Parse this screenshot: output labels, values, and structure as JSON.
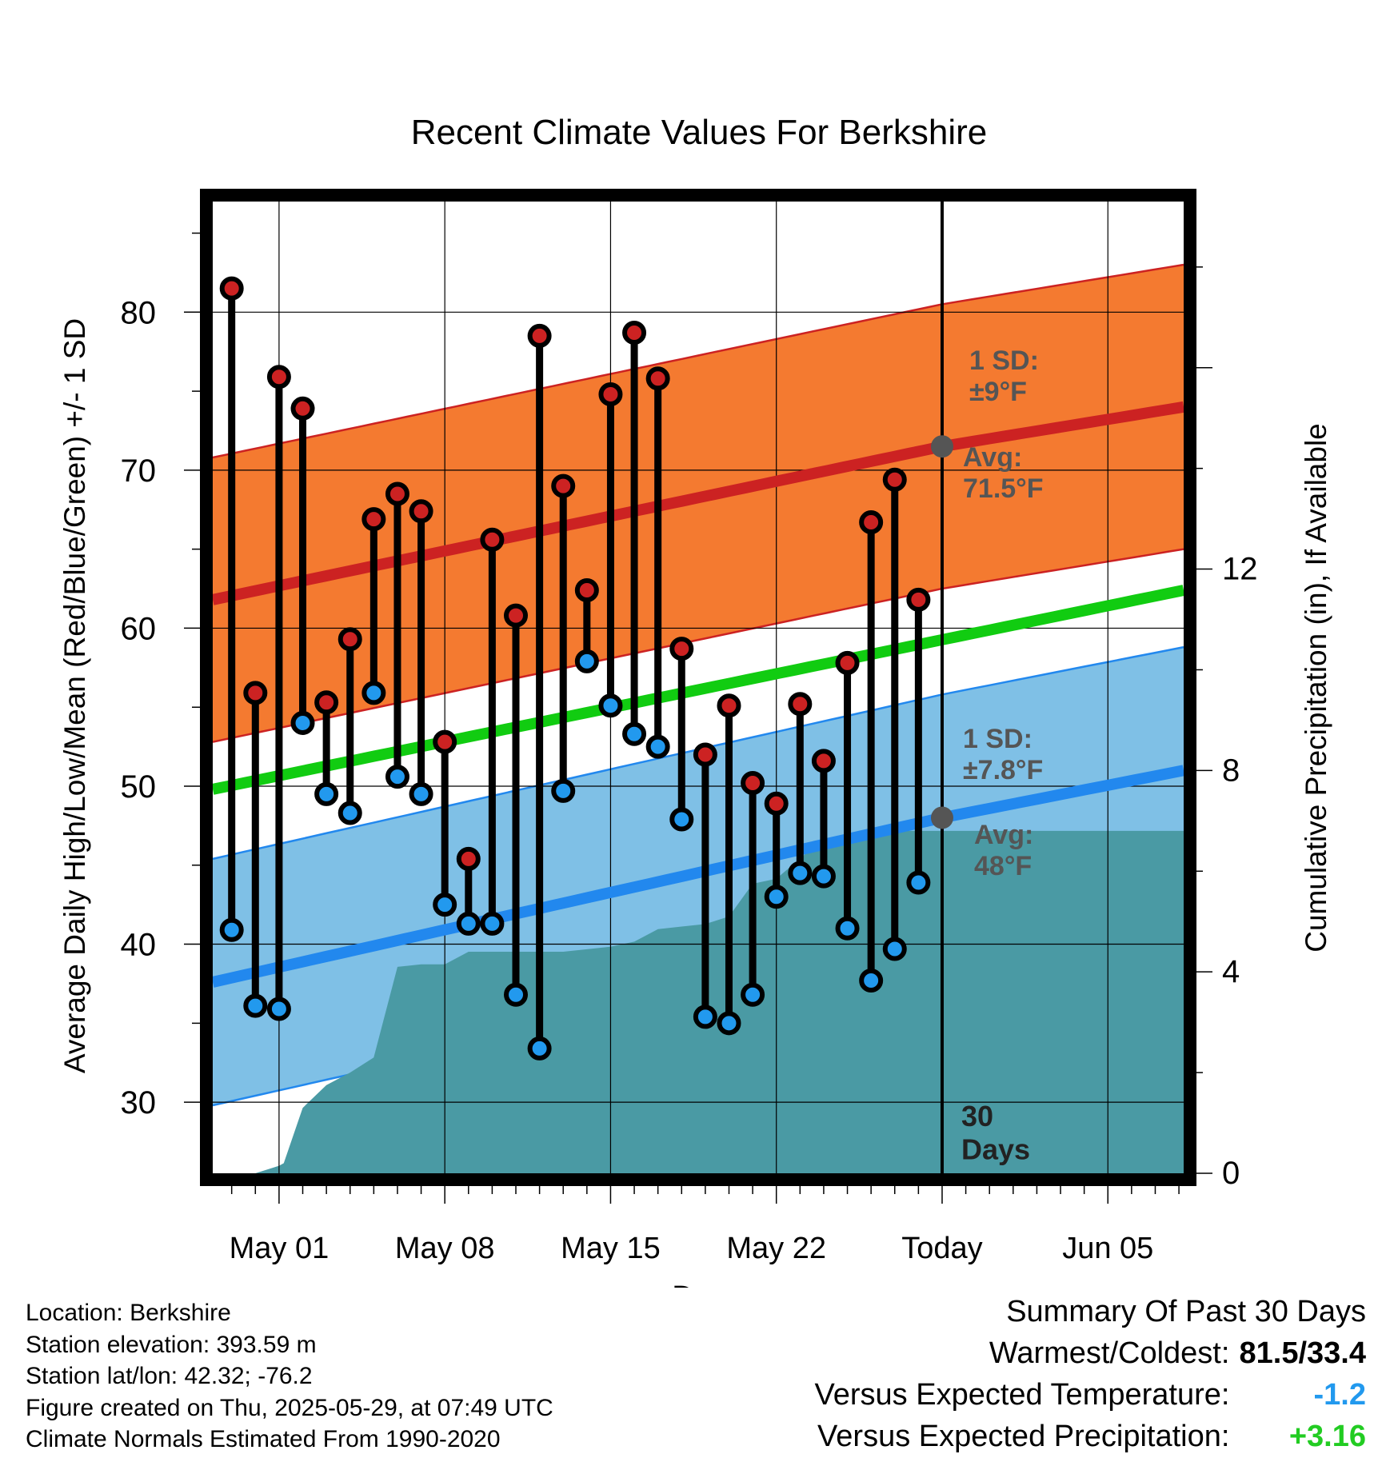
{
  "chart_data": {
    "type": "line",
    "title": "Recent Climate Values For Berkshire",
    "xlabel": "Day",
    "ylabel": "Average Daily High/Low/Mean (Red/Blue/Green) +/- 1 SD",
    "y2label": "Cumulative Precipitation (in), If Available",
    "ylim": [
      25.5,
      87
    ],
    "y2lim": [
      0,
      19.3
    ],
    "xlim": [
      -2.8,
      38.2
    ],
    "x_ticks": [
      {
        "x": 0,
        "label": "May 01"
      },
      {
        "x": 7,
        "label": "May 08"
      },
      {
        "x": 14,
        "label": "May 15"
      },
      {
        "x": 21,
        "label": "May 22"
      },
      {
        "x": 28,
        "label": "Today"
      },
      {
        "x": 35,
        "label": "Jun 05"
      }
    ],
    "y_ticks": [
      30,
      40,
      50,
      60,
      70,
      80
    ],
    "y2_ticks": [
      0,
      4,
      8,
      12
    ],
    "x_meaning": "day offset from May 01",
    "today_x": 28,
    "today_label": "30\nDays",
    "normals": {
      "high_avg": {
        "x": [
          -2.8,
          28,
          38.2
        ],
        "values": [
          61.8,
          71.5,
          74.0
        ]
      },
      "high_sd": 9,
      "high_label": "1 SD:\n±9°F",
      "high_avg_label": "Avg:\n71.5°F",
      "low_avg": {
        "x": [
          -2.8,
          28,
          38.2
        ],
        "values": [
          37.6,
          48.0,
          51.0
        ]
      },
      "low_sd": 7.8,
      "low_label": "1 SD:\n±7.8°F",
      "low_avg_label": "Avg:\n48°F",
      "mean": {
        "x": [
          -2.8,
          38.2
        ],
        "values": [
          49.8,
          62.4
        ]
      }
    },
    "series": [
      {
        "name": "High",
        "color": "#cc2222",
        "x": [
          -2,
          -1,
          0,
          1,
          2,
          3,
          4,
          5,
          6,
          7,
          8,
          9,
          10,
          11,
          12,
          13,
          14,
          15,
          16,
          17,
          18,
          19,
          20,
          21,
          22,
          23,
          24,
          25,
          26,
          27
        ],
        "values": [
          81.5,
          55.9,
          75.9,
          73.9,
          55.3,
          59.3,
          66.9,
          68.5,
          67.4,
          52.8,
          45.4,
          65.6,
          60.8,
          78.5,
          69.0,
          62.4,
          74.8,
          78.7,
          75.8,
          58.7,
          52.0,
          55.1,
          50.2,
          48.9,
          55.2,
          51.6,
          57.8,
          66.7,
          69.4,
          61.8
        ]
      },
      {
        "name": "Low",
        "color": "#2299ee",
        "x": [
          -2,
          -1,
          0,
          1,
          2,
          3,
          4,
          5,
          6,
          7,
          8,
          9,
          10,
          11,
          12,
          13,
          14,
          15,
          16,
          17,
          18,
          19,
          20,
          21,
          22,
          23,
          24,
          25,
          26,
          27
        ],
        "values": [
          40.9,
          36.1,
          35.9,
          54.0,
          49.5,
          48.3,
          55.9,
          50.6,
          49.5,
          42.5,
          41.3,
          41.3,
          36.8,
          33.4,
          49.7,
          57.9,
          55.1,
          53.3,
          52.5,
          47.9,
          35.4,
          35.0,
          36.8,
          43.0,
          44.5,
          44.3,
          41.0,
          37.7,
          39.7,
          43.9
        ]
      }
    ],
    "precipitation": {
      "x": [
        -1,
        0,
        0.2,
        1,
        2,
        3,
        4,
        5,
        6,
        7,
        8,
        9,
        10,
        11,
        12,
        13,
        14,
        15,
        16,
        17,
        18,
        19,
        20,
        21,
        22,
        23,
        24,
        25,
        26,
        27,
        28,
        38.2
      ],
      "values": [
        0,
        0.15,
        0.2,
        1.3,
        1.75,
        2.0,
        2.3,
        4.1,
        4.15,
        4.15,
        4.4,
        4.4,
        4.4,
        4.4,
        4.4,
        4.45,
        4.5,
        4.6,
        4.85,
        4.9,
        4.95,
        5.1,
        5.75,
        5.85,
        6.25,
        6.65,
        6.65,
        6.65,
        6.8,
        6.8,
        6.8,
        6.8
      ]
    }
  },
  "footer": {
    "location": "Location: Berkshire",
    "elevation": "Station elevation: 393.59 m",
    "latlon": "Station lat/lon: 42.32; -76.2",
    "created": "Figure created on Thu, 2025-05-29, at 07:49 UTC",
    "normals": "Climate Normals Estimated From 1990-2020"
  },
  "summary": {
    "title": "Summary Of Past 30 Days",
    "warm_cold_label": "Warmest/Coldest:",
    "warm_cold_value": "81.5/33.4",
    "temp_label": "Versus Expected Temperature:",
    "temp_value": "-1.2",
    "temp_color": "#2299ee",
    "precip_label": "Versus Expected Precipitation:",
    "precip_value": "+3.16",
    "precip_color": "#22cc22"
  }
}
